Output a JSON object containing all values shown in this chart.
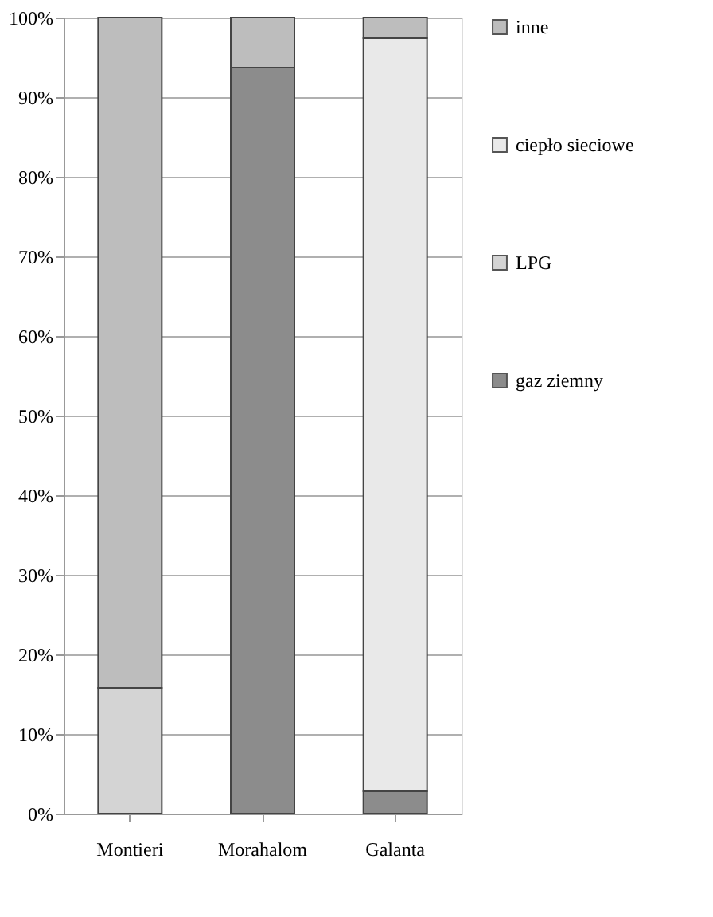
{
  "chart_data": {
    "type": "bar",
    "stacked": true,
    "categories": [
      "Montieri",
      "Morahalom",
      "Galanta"
    ],
    "series": [
      {
        "name": "gaz ziemny",
        "color": "#8c8c8c",
        "values": [
          null,
          93.7,
          2.8
        ]
      },
      {
        "name": "LPG",
        "color": "#d4d4d4",
        "values": [
          15.8,
          null,
          null
        ]
      },
      {
        "name": "ciepło sieciowe",
        "color": "#e9e9e9",
        "values": [
          null,
          null,
          94.6
        ]
      },
      {
        "name": "inne",
        "color": "#bdbdbd",
        "values": [
          84.2,
          6.3,
          2.6
        ]
      }
    ],
    "ylim": [
      0,
      100
    ],
    "yticks": [
      {
        "value": 0,
        "label": "0%"
      },
      {
        "value": 10,
        "label": "10%"
      },
      {
        "value": 20,
        "label": "20%"
      },
      {
        "value": 30,
        "label": "30%"
      },
      {
        "value": 40,
        "label": "40%"
      },
      {
        "value": 50,
        "label": "50%"
      },
      {
        "value": 60,
        "label": "60%"
      },
      {
        "value": 70,
        "label": "70%"
      },
      {
        "value": 80,
        "label": "80%"
      },
      {
        "value": 90,
        "label": "90%"
      },
      {
        "value": 100,
        "label": "100%"
      }
    ],
    "grid": "y",
    "legend": "right"
  }
}
